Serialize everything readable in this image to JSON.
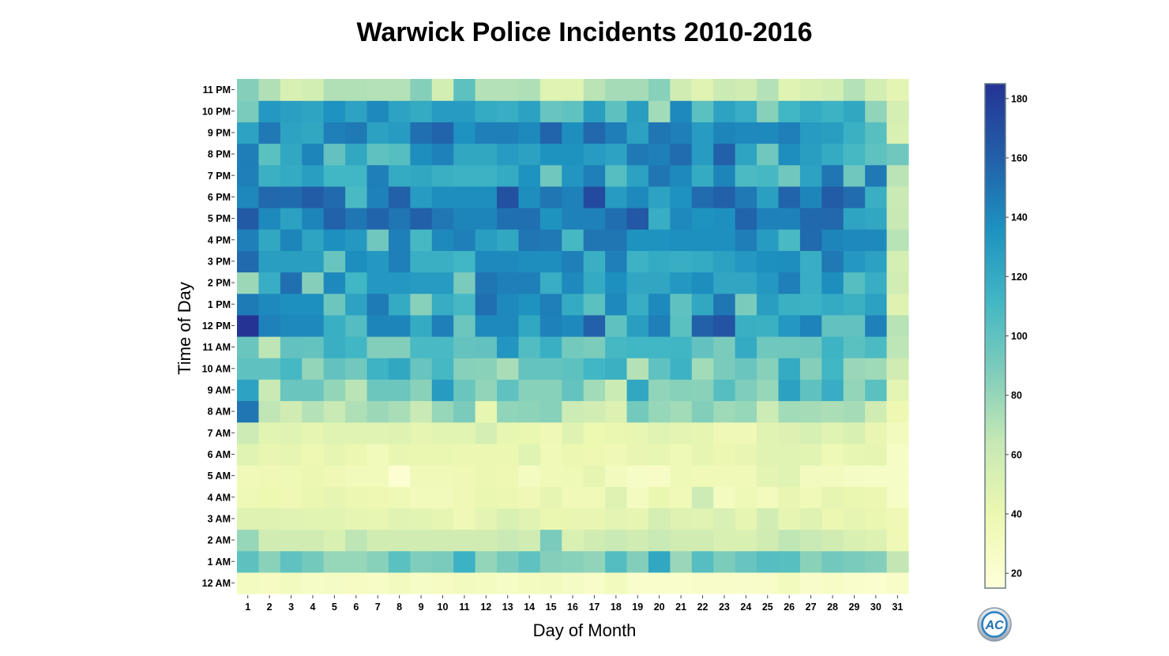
{
  "chart_data": {
    "type": "heatmap",
    "title": "Warwick Police Incidents 2010-2016",
    "xlabel": "Day of Month",
    "ylabel": "Time of Day",
    "x_categories": [
      "1",
      "2",
      "3",
      "4",
      "5",
      "6",
      "7",
      "8",
      "9",
      "10",
      "11",
      "12",
      "13",
      "14",
      "15",
      "16",
      "17",
      "18",
      "19",
      "20",
      "21",
      "22",
      "23",
      "24",
      "25",
      "26",
      "27",
      "28",
      "29",
      "30",
      "31"
    ],
    "y_categories": [
      "12 AM",
      "1 AM",
      "2 AM",
      "3 AM",
      "4 AM",
      "5 AM",
      "6 AM",
      "7 AM",
      "8 AM",
      "9 AM",
      "10 AM",
      "11 AM",
      "12 PM",
      "1 PM",
      "2 PM",
      "3 PM",
      "4 PM",
      "5 PM",
      "6 PM",
      "7 PM",
      "8 PM",
      "9 PM",
      "10 PM",
      "11 PM"
    ],
    "values": [
      [
        30,
        29,
        31,
        27,
        28,
        29,
        26,
        31,
        27,
        29,
        31,
        30,
        27,
        30,
        31,
        28,
        25,
        32,
        23,
        23,
        23,
        25,
        25,
        24,
        25,
        32,
        24,
        26,
        23,
        22,
        25
      ],
      [
        101,
        84,
        100,
        92,
        80,
        80,
        85,
        102,
        88,
        90,
        115,
        81,
        91,
        100,
        86,
        85,
        82,
        105,
        87,
        122,
        79,
        104,
        89,
        97,
        104,
        103,
        84,
        93,
        90,
        87,
        65
      ],
      [
        80,
        58,
        58,
        58,
        52,
        67,
        58,
        58,
        58,
        58,
        58,
        58,
        62,
        58,
        90,
        52,
        58,
        62,
        58,
        62,
        58,
        58,
        52,
        52,
        58,
        66,
        62,
        58,
        52,
        50,
        37
      ],
      [
        49,
        49,
        47,
        46,
        46,
        44,
        43,
        47,
        46,
        44,
        37,
        45,
        52,
        47,
        41,
        42,
        42,
        45,
        44,
        55,
        49,
        48,
        53,
        44,
        57,
        44,
        49,
        40,
        44,
        41,
        37
      ],
      [
        36,
        39,
        37,
        41,
        44,
        40,
        38,
        36,
        33,
        33,
        37,
        41,
        40,
        37,
        44,
        35,
        35,
        49,
        30,
        41,
        35,
        60,
        30,
        36,
        32,
        42,
        35,
        44,
        41,
        40,
        27
      ],
      [
        35,
        37,
        36,
        40,
        37,
        34,
        34,
        19,
        35,
        35,
        37,
        40,
        38,
        30,
        35,
        36,
        44,
        32,
        27,
        26,
        36,
        35,
        35,
        35,
        45,
        48,
        31,
        31,
        28,
        27,
        27
      ],
      [
        48,
        42,
        44,
        38,
        44,
        40,
        34,
        42,
        41,
        41,
        40,
        40,
        40,
        48,
        35,
        40,
        38,
        37,
        42,
        43,
        36,
        44,
        40,
        42,
        48,
        48,
        46,
        36,
        43,
        44,
        27
      ],
      [
        60,
        46,
        48,
        44,
        48,
        48,
        48,
        49,
        44,
        46,
        46,
        55,
        43,
        41,
        37,
        49,
        39,
        41,
        43,
        48,
        45,
        44,
        37,
        37,
        47,
        50,
        54,
        48,
        52,
        42,
        32
      ],
      [
        150,
        66,
        58,
        70,
        62,
        72,
        78,
        74,
        62,
        80,
        90,
        43,
        82,
        83,
        85,
        60,
        57,
        50,
        92,
        80,
        76,
        87,
        77,
        80,
        60,
        76,
        75,
        73,
        75,
        58,
        38
      ],
      [
        125,
        62,
        96,
        96,
        81,
        68,
        95,
        95,
        84,
        130,
        96,
        82,
        100,
        85,
        85,
        98,
        76,
        61,
        122,
        82,
        85,
        84,
        104,
        88,
        80,
        126,
        100,
        118,
        81,
        102,
        45
      ],
      [
        100,
        100,
        110,
        81,
        99,
        93,
        114,
        122,
        97,
        110,
        85,
        84,
        74,
        98,
        98,
        101,
        112,
        116,
        70,
        100,
        115,
        76,
        90,
        96,
        85,
        120,
        86,
        112,
        79,
        77,
        58
      ],
      [
        96,
        67,
        99,
        98,
        117,
        112,
        87,
        87,
        109,
        109,
        98,
        99,
        133,
        106,
        117,
        92,
        89,
        110,
        112,
        112,
        113,
        99,
        90,
        120,
        94,
        94,
        95,
        114,
        102,
        108,
        67
      ],
      [
        185,
        144,
        140,
        140,
        117,
        105,
        142,
        142,
        120,
        145,
        95,
        140,
        140,
        122,
        144,
        140,
        160,
        100,
        128,
        145,
        102,
        160,
        167,
        117,
        116,
        132,
        143,
        99,
        99,
        144,
        69
      ],
      [
        147,
        140,
        137,
        137,
        95,
        125,
        147,
        120,
        85,
        119,
        110,
        152,
        140,
        135,
        145,
        120,
        102,
        140,
        118,
        140,
        100,
        122,
        150,
        90,
        128,
        116,
        115,
        120,
        116,
        126,
        49
      ],
      [
        78,
        118,
        152,
        86,
        140,
        112,
        132,
        132,
        130,
        130,
        90,
        150,
        145,
        145,
        118,
        140,
        120,
        137,
        123,
        123,
        132,
        138,
        123,
        123,
        132,
        145,
        118,
        138,
        104,
        118,
        57
      ],
      [
        155,
        128,
        128,
        128,
        97,
        138,
        132,
        145,
        117,
        117,
        112,
        140,
        140,
        138,
        138,
        145,
        117,
        145,
        115,
        120,
        118,
        120,
        126,
        132,
        137,
        138,
        118,
        148,
        132,
        126,
        55
      ],
      [
        145,
        122,
        142,
        124,
        137,
        132,
        94,
        145,
        110,
        140,
        145,
        128,
        122,
        150,
        148,
        110,
        150,
        150,
        135,
        135,
        137,
        137,
        137,
        146,
        130,
        109,
        155,
        142,
        140,
        140,
        69
      ],
      [
        163,
        140,
        126,
        142,
        159,
        150,
        158,
        150,
        160,
        149,
        142,
        142,
        152,
        152,
        135,
        144,
        144,
        153,
        164,
        118,
        140,
        135,
        137,
        158,
        144,
        144,
        156,
        156,
        124,
        122,
        63
      ],
      [
        141,
        156,
        155,
        162,
        155,
        109,
        144,
        160,
        130,
        138,
        138,
        138,
        168,
        138,
        150,
        144,
        172,
        130,
        140,
        125,
        136,
        154,
        160,
        148,
        127,
        158,
        142,
        162,
        154,
        117,
        62
      ],
      [
        145,
        116,
        120,
        128,
        112,
        112,
        145,
        120,
        122,
        117,
        115,
        115,
        120,
        136,
        94,
        133,
        145,
        104,
        126,
        150,
        140,
        120,
        142,
        108,
        110,
        94,
        125,
        150,
        94,
        148,
        68
      ],
      [
        146,
        102,
        122,
        142,
        99,
        122,
        100,
        104,
        138,
        144,
        122,
        122,
        130,
        126,
        135,
        135,
        130,
        125,
        148,
        145,
        154,
        130,
        160,
        124,
        94,
        138,
        128,
        120,
        110,
        100,
        94
      ],
      [
        125,
        148,
        125,
        122,
        145,
        148,
        126,
        130,
        152,
        158,
        136,
        145,
        145,
        140,
        158,
        138,
        156,
        146,
        126,
        150,
        145,
        130,
        142,
        140,
        140,
        145,
        130,
        128,
        116,
        103,
        52
      ],
      [
        90,
        132,
        127,
        124,
        136,
        125,
        140,
        125,
        120,
        130,
        130,
        120,
        118,
        126,
        97,
        100,
        128,
        101,
        128,
        76,
        140,
        102,
        125,
        118,
        85,
        112,
        120,
        115,
        122,
        82,
        55
      ],
      [
        86,
        71,
        52,
        56,
        71,
        71,
        70,
        70,
        86,
        56,
        101,
        70,
        70,
        72,
        48,
        48,
        68,
        75,
        75,
        85,
        58,
        48,
        61,
        58,
        70,
        48,
        52,
        56,
        70,
        56,
        45
      ]
    ],
    "colorbar": {
      "ticks": [
        20,
        40,
        60,
        80,
        100,
        120,
        140,
        160,
        180
      ],
      "min": 15,
      "max": 185
    },
    "colorscale": [
      "#ffffd9",
      "#edf8b1",
      "#c7e9b4",
      "#7fcdbb",
      "#41b6c4",
      "#1d91c0",
      "#225ea8",
      "#253494"
    ]
  },
  "logo": {
    "text": "AC"
  }
}
